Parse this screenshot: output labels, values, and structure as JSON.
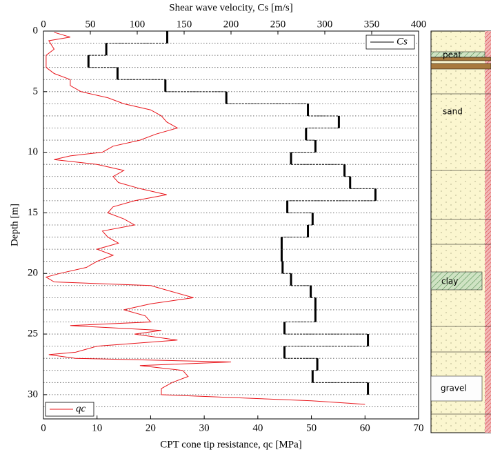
{
  "chart_data": {
    "type": "depth-profile",
    "x_label": "CPT cone tip resistance, qc [MPa]",
    "x2_label": "Shear wave velocity, Cs [m/s]",
    "y_label": "Depth [m]",
    "xlim": [
      0,
      70
    ],
    "xticks": [
      0,
      10,
      20,
      30,
      40,
      50,
      60,
      70
    ],
    "x2lim": [
      0,
      400
    ],
    "x2ticks": [
      0,
      50,
      100,
      150,
      200,
      250,
      300,
      350,
      400
    ],
    "ylim": [
      0,
      32
    ],
    "yticks": [
      0,
      5,
      10,
      15,
      20,
      25,
      30
    ],
    "minor_yticks": [
      1,
      2,
      3,
      4,
      6,
      7,
      8,
      9,
      11,
      12,
      13,
      14,
      16,
      17,
      18,
      19,
      21,
      22,
      23,
      24,
      26,
      27,
      28,
      29,
      31
    ],
    "y_inverted": true,
    "series": [
      {
        "name": "qc",
        "color": "#e8141a",
        "axis": "x",
        "legend": "lower left",
        "values": [
          2,
          5,
          1,
          2,
          0.5,
          0.5,
          2,
          5,
          5,
          7,
          12,
          15,
          20,
          22,
          23,
          25,
          21,
          18,
          13,
          11,
          5,
          2,
          10,
          15,
          13,
          14,
          18,
          23,
          17,
          13,
          12,
          15,
          17,
          11,
          12,
          14,
          10,
          13,
          10,
          8,
          3,
          0.5,
          2,
          20,
          24,
          28,
          20,
          15,
          19,
          20,
          5,
          22,
          17,
          25,
          10,
          6,
          1,
          6,
          35,
          18,
          26,
          27,
          24,
          22,
          22,
          50,
          60
        ],
        "depth": [
          0.1,
          0.5,
          0.8,
          1.5,
          2,
          3,
          3.5,
          4,
          4.5,
          5,
          5.5,
          6,
          6.5,
          7,
          7.5,
          8,
          8.5,
          9,
          9.5,
          10,
          10.3,
          10.6,
          11,
          11.5,
          12,
          12.5,
          13,
          13.5,
          14,
          14.5,
          15,
          15.5,
          16,
          16.5,
          17,
          17.5,
          18,
          18.5,
          19,
          19.5,
          20,
          20.3,
          20.7,
          21,
          21.5,
          22,
          22.5,
          23,
          23.5,
          24,
          24.3,
          24.7,
          25,
          25.5,
          26,
          26.5,
          26.7,
          27,
          27.3,
          27.6,
          28,
          28.5,
          29,
          29.5,
          30,
          30.5,
          30.8
        ]
      },
      {
        "name": "Cs",
        "color": "#000000",
        "axis": "x2",
        "legend": "upper right",
        "values": [
          132,
          67,
          48,
          79,
          130,
          195,
          282,
          315,
          280,
          290,
          264,
          321,
          327,
          354,
          260,
          287,
          282,
          254,
          254,
          255,
          264,
          285,
          290,
          290,
          257,
          346,
          257,
          292,
          287,
          346
        ],
        "depth_bins": [
          0,
          1,
          2,
          3,
          4,
          5,
          6,
          7,
          8,
          9,
          10,
          11,
          12,
          13,
          14,
          15,
          16,
          17,
          18,
          19,
          20,
          21,
          22,
          23,
          24,
          25,
          26,
          27,
          28,
          29,
          30
        ]
      }
    ]
  },
  "soil_column": {
    "labels": [
      "peat",
      "sand",
      "clay",
      "gravel"
    ]
  }
}
